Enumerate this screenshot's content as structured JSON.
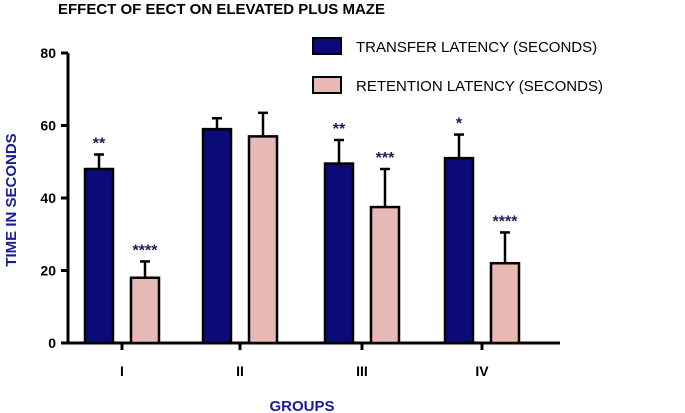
{
  "chart_data": {
    "type": "bar",
    "title": "EFFECT OF EECT ON ELEVATED PLUS MAZE",
    "xlabel": "GROUPS",
    "ylabel": "TIME IN SECONDS",
    "ylim": [
      0,
      80
    ],
    "yticks": [
      0,
      20,
      40,
      60,
      80
    ],
    "categories": [
      "I",
      "II",
      "III",
      "IV"
    ],
    "series": [
      {
        "name": "TRANSFER LATENCY (SECONDS)",
        "color": "#0a0a78",
        "values": [
          48,
          59,
          49.5,
          51
        ],
        "errors": [
          4,
          3,
          6.5,
          6.5
        ],
        "significance": [
          "**",
          "",
          "**",
          "*"
        ]
      },
      {
        "name": "RETENTION LATENCY (SECONDS)",
        "color": "#e8b9b4",
        "values": [
          18,
          57,
          37.5,
          22
        ],
        "errors": [
          4.5,
          6.5,
          10.5,
          8.5
        ],
        "significance": [
          "****",
          "",
          "***",
          "****"
        ]
      }
    ],
    "legend_position": "top-right",
    "grid": false,
    "colors": {
      "axis": "#000000",
      "axis_title": "#1a1a9a",
      "significance": "#1c1c5a"
    }
  }
}
